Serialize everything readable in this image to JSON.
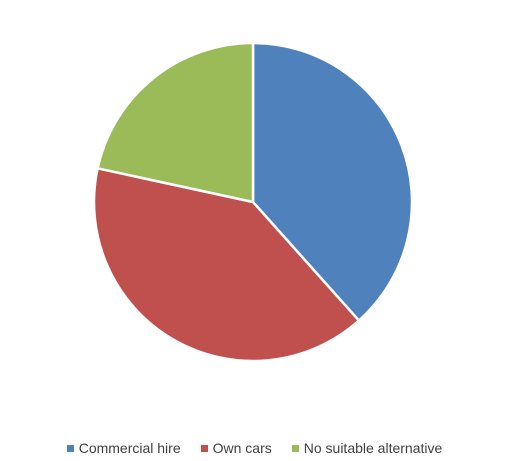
{
  "chart_data": {
    "type": "pie",
    "title": "",
    "categories": [
      "Commercial hire",
      "Own cars",
      "No suitable alternative"
    ],
    "values": [
      38.4,
      40.0,
      21.6
    ],
    "colors": [
      "#4F81BD",
      "#C0504D",
      "#9BBB59"
    ],
    "legend_position": "bottom"
  },
  "legend": {
    "items": [
      {
        "label": "Commercial hire",
        "color": "#4F81BD"
      },
      {
        "label": "Own cars",
        "color": "#C0504D"
      },
      {
        "label": "No suitable alternative",
        "color": "#9BBB59"
      }
    ]
  }
}
